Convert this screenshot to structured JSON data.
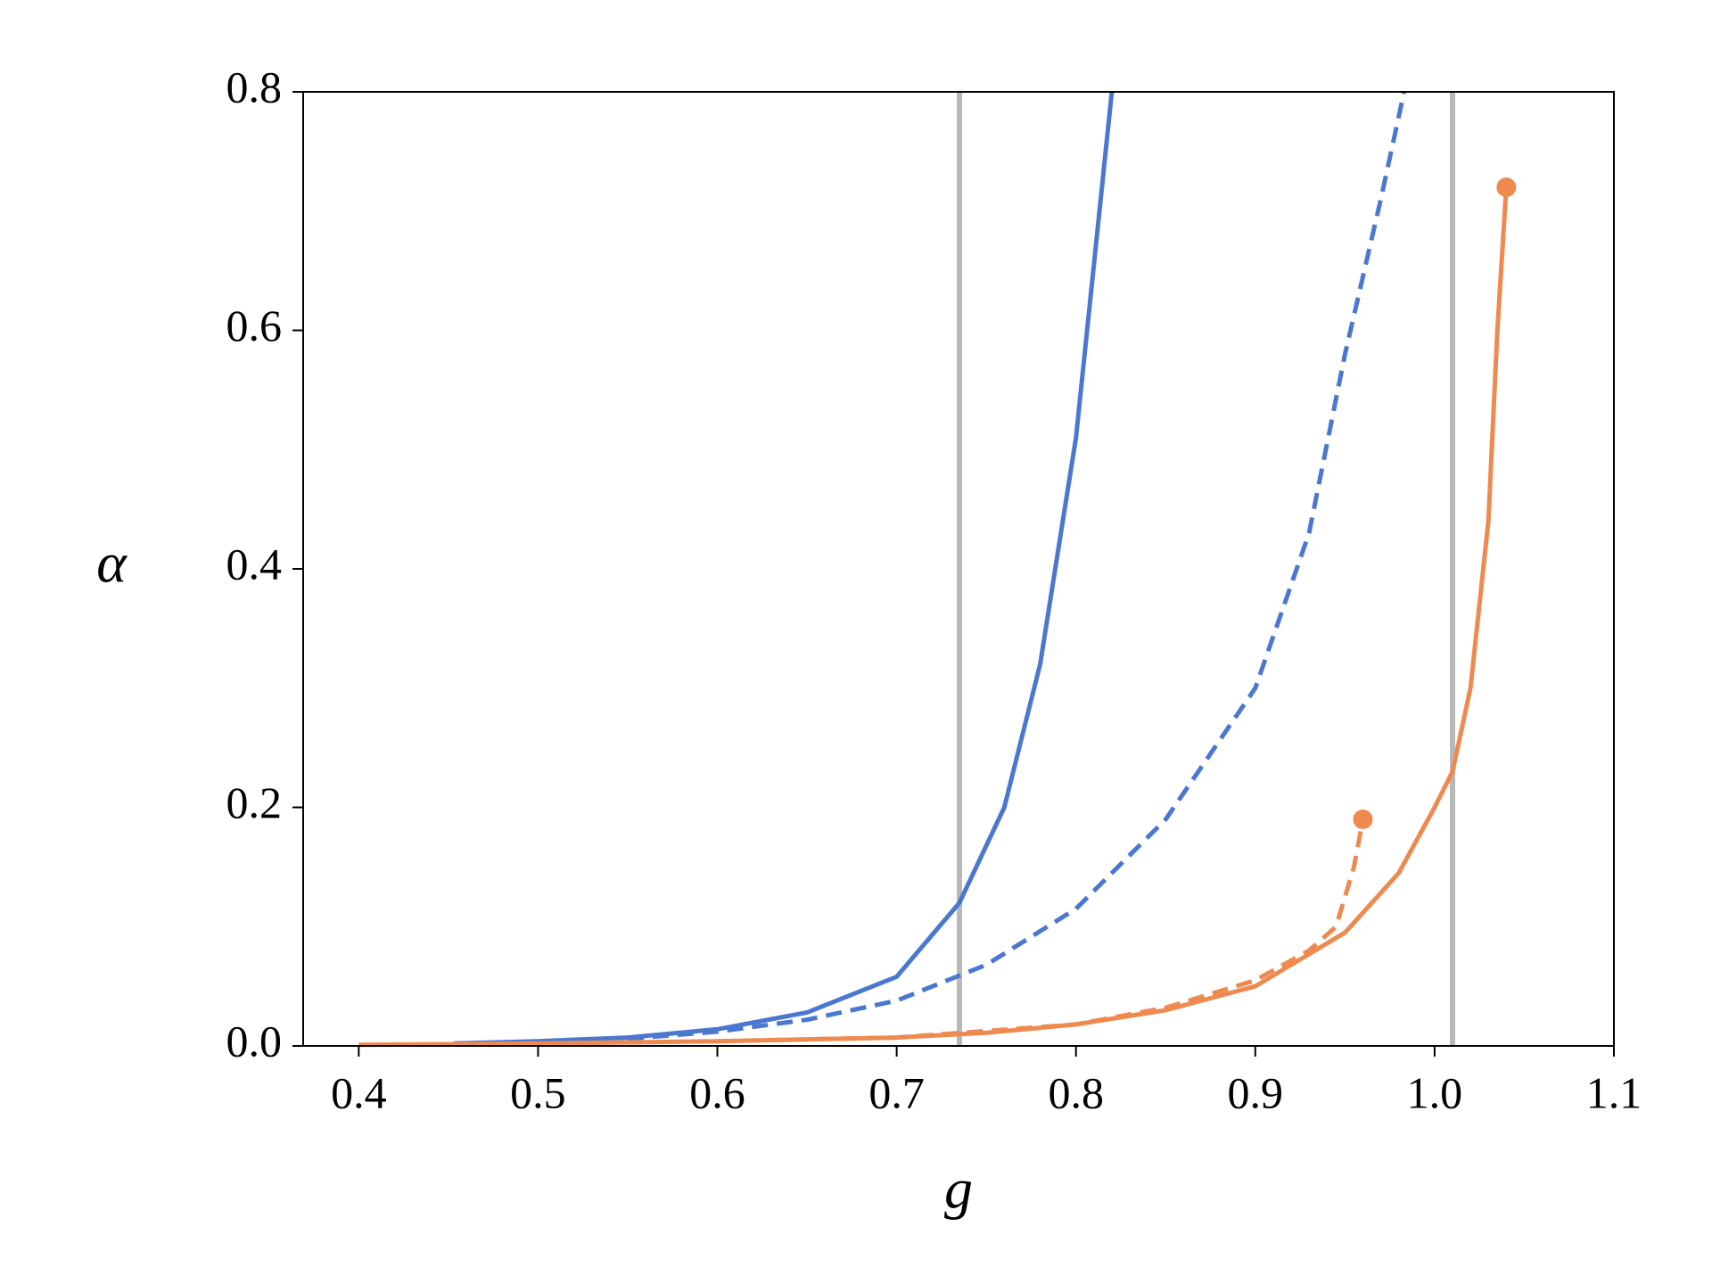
{
  "chart_data": {
    "type": "line",
    "x_label": "g",
    "y_label": "α",
    "xlim": [
      0.369,
      1.1
    ],
    "ylim": [
      0,
      0.8
    ],
    "xticks": [
      0.4,
      0.5,
      0.6,
      0.7,
      0.8,
      0.9,
      {
        "value": 1,
        "label": "1.0"
      },
      1.1
    ],
    "yticks": [
      {
        "value": 0,
        "label": "0.0"
      },
      0.2,
      0.4,
      0.6,
      0.8
    ],
    "vlines": [
      0.735,
      1.01
    ],
    "vline_color": "#b8b8b8",
    "series": [
      {
        "color": "#4a78d0",
        "dashed": false,
        "end_marker": false,
        "x": [
          0.453,
          0.5,
          0.55,
          0.6,
          0.65,
          0.7,
          0.735,
          0.76,
          0.78,
          0.8,
          0.82
        ],
        "values": [
          0.002,
          0.004,
          0.007,
          0.014,
          0.028,
          0.058,
          0.12,
          0.2,
          0.32,
          0.51,
          0.8
        ]
      },
      {
        "color": "#4a78d0",
        "dashed": true,
        "end_marker": false,
        "x": [
          0.55,
          0.6,
          0.65,
          0.7,
          0.75,
          0.8,
          0.85,
          0.9,
          0.93,
          0.95,
          0.97,
          0.983
        ],
        "values": [
          0.006,
          0.012,
          0.022,
          0.038,
          0.068,
          0.115,
          0.19,
          0.3,
          0.43,
          0.58,
          0.71,
          0.8
        ]
      },
      {
        "color": "#ee8a4f",
        "dashed": false,
        "end_marker": true,
        "x": [
          0.4,
          0.5,
          0.6,
          0.7,
          0.75,
          0.8,
          0.85,
          0.9,
          0.95,
          0.98,
          1.0,
          1.01,
          1.02,
          1.03,
          1.035,
          1.04
        ],
        "values": [
          0.001,
          0.002,
          0.004,
          0.007,
          0.011,
          0.018,
          0.03,
          0.05,
          0.095,
          0.145,
          0.2,
          0.23,
          0.3,
          0.44,
          0.6,
          0.72
        ]
      },
      {
        "color": "#ee8a4f",
        "dashed": true,
        "end_marker": true,
        "x": [
          0.6,
          0.7,
          0.8,
          0.85,
          0.9,
          0.93,
          0.945,
          0.955,
          0.96
        ],
        "values": [
          0.004,
          0.007,
          0.018,
          0.032,
          0.055,
          0.08,
          0.1,
          0.15,
          0.19
        ]
      }
    ]
  }
}
